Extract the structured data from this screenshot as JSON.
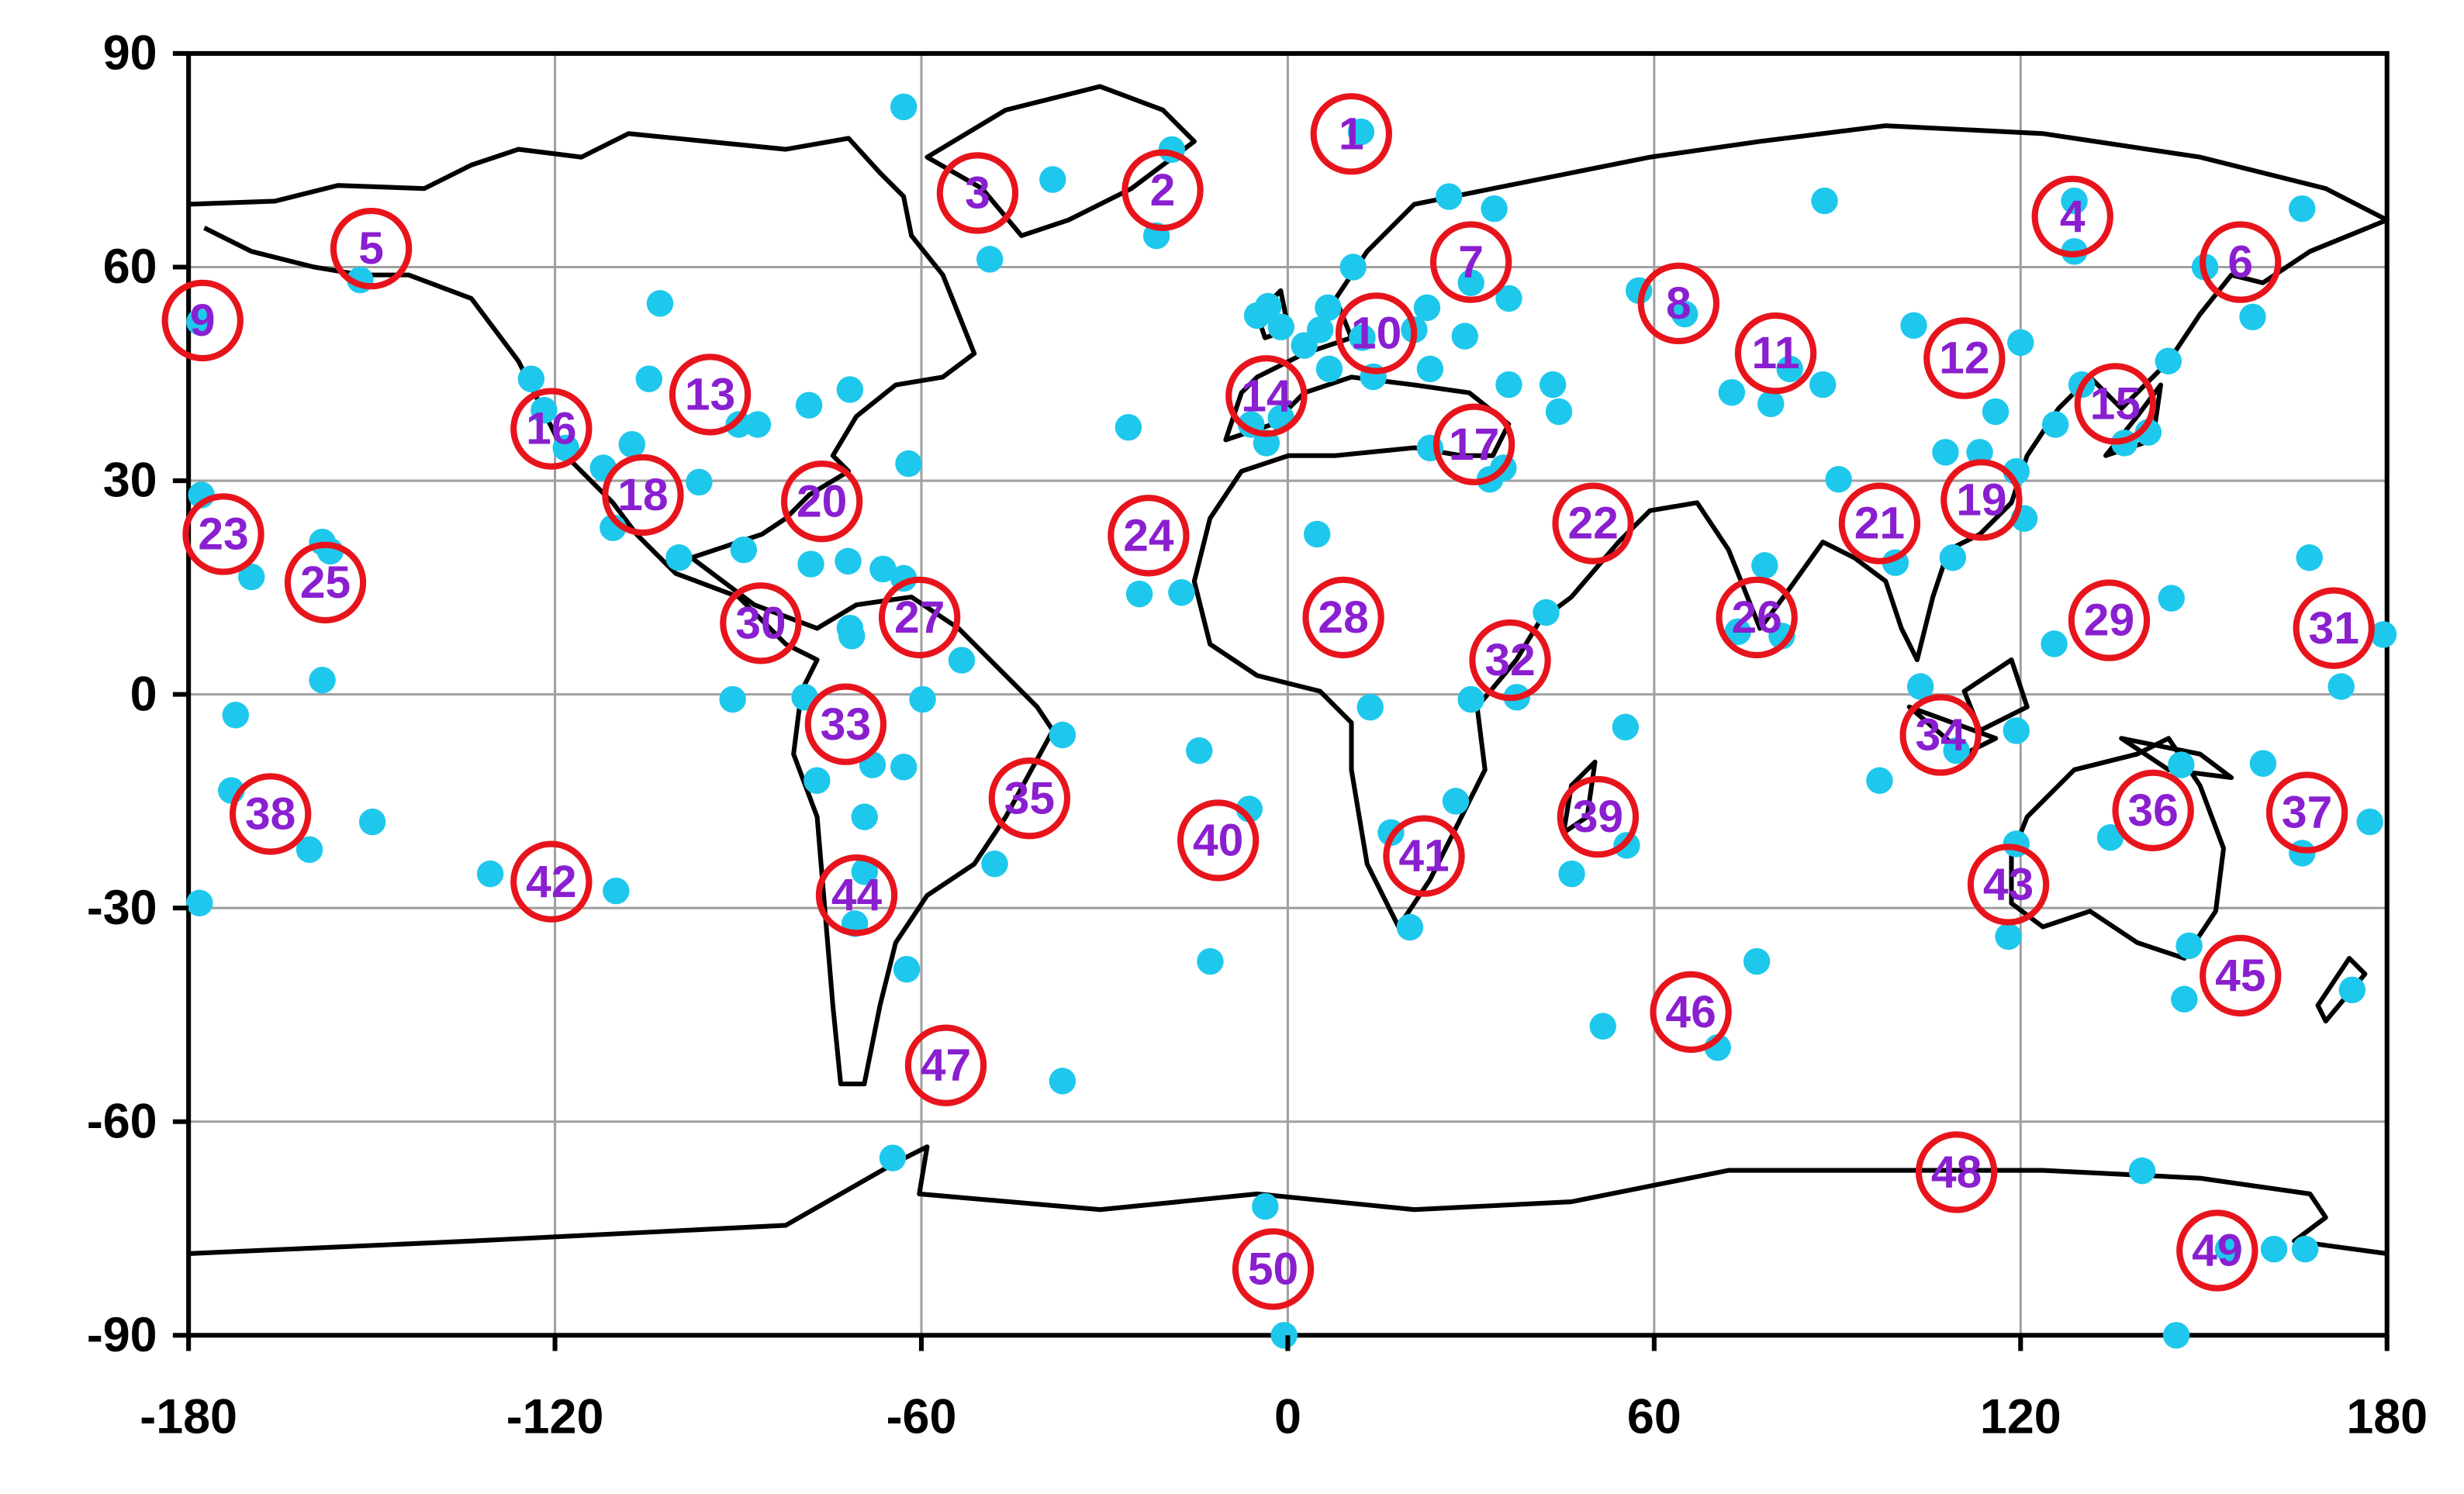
{
  "chart_data": {
    "type": "scatter",
    "xlim": [
      -180,
      180
    ],
    "ylim": [
      -90,
      90
    ],
    "xticks": [
      -180,
      -120,
      -60,
      0,
      60,
      120,
      180
    ],
    "yticks": [
      -90,
      -60,
      -30,
      0,
      30,
      60,
      90
    ],
    "grid": true,
    "series": [
      {
        "color": "#1ec8ec",
        "x": [
          -62.9,
          12,
          -19,
          -38.5,
          -48.8,
          -21.5,
          26.4,
          33.8,
          87.9,
          128.8,
          166.1,
          128.8,
          150.2,
          158,
          10.7,
          30,
          36.2,
          -5,
          -3.2,
          -1.1,
          6.6,
          5.3,
          2.7,
          12.2,
          20.7,
          29,
          22.8,
          6.8,
          14,
          23.3,
          36.2,
          43.4,
          44.4,
          -6,
          -1.1,
          -3.5,
          23.3,
          33.1,
          35.3,
          57.5,
          65,
          72.7,
          79.1,
          87.6,
          82.2,
          102.5,
          120,
          115.9,
          119.3,
          113.3,
          107.7,
          125.7,
          130,
          144.2,
          137,
          140.9,
          90.2,
          78.1,
          80.9,
          73.7,
          99.5,
          108.9,
          120.6,
          103.6,
          96.9,
          109.5,
          119.3,
          125.5,
          144.7,
          167.3,
          179.4,
          172.5,
          159.7,
          146.3,
          134.7,
          166.1,
          177.2,
          119.3,
          118,
          147.6,
          146.8,
          174.3,
          76.8,
          70.4,
          51.6,
          55.3,
          55.5,
          46.5,
          42.3,
          37.5,
          30,
          27.5,
          16.9,
          20,
          13.5,
          4.8,
          -14.5,
          -6.3,
          -12.7,
          -26.1,
          -24.3,
          -17.4,
          -36.9,
          -36.9,
          -48,
          -53.4,
          -59.8,
          -62.9,
          -68,
          -77.1,
          -79.1,
          -90.9,
          -69.3,
          -69.3,
          -62.4,
          -70.9,
          -64.7,
          -3.7,
          -0.6,
          139.9,
          145.5,
          161.5,
          166.6,
          154,
          -62.1,
          -71.7,
          -78.4,
          -89.9,
          -86.8,
          -96.4,
          -104.6,
          -102.8,
          -123.9,
          -121.8,
          -118.2,
          -112.1,
          -107.4,
          -110.5,
          -99.7,
          -89.1,
          -78.1,
          -72,
          -66.3,
          -62.9,
          -71.7,
          -71.4,
          -151.9,
          -178.2,
          -177.9,
          -169.7,
          -172.3,
          -173,
          -158.1,
          -156.8,
          -158.1,
          -160.2,
          -149.9,
          -130.6,
          -110,
          -178.2
        ],
        "y": [
          82.5,
          79,
          76.5,
          72.3,
          61.1,
          64.4,
          69.9,
          68.2,
          69.3,
          69.3,
          68.2,
          62.2,
          60,
          53,
          60,
          57.8,
          55.6,
          53.2,
          54.5,
          51.6,
          54.3,
          51.2,
          49,
          50.1,
          51.2,
          50.3,
          54.3,
          45.7,
          44.6,
          45.7,
          43.5,
          43.5,
          39.7,
          37.9,
          38.8,
          35.3,
          34.6,
          30.2,
          31.8,
          56.7,
          53.4,
          42.4,
          40.8,
          43.5,
          45.7,
          51.8,
          49.4,
          39.7,
          31.3,
          34,
          34,
          37.9,
          43.5,
          46.8,
          35.3,
          36.8,
          30.2,
          18.1,
          8.2,
          8.8,
          18.5,
          19.2,
          24.7,
          1.1,
          -12.1,
          -7.9,
          -5.1,
          7.1,
          13.5,
          19.2,
          8.4,
          1.1,
          -9.7,
          -9.9,
          -20.1,
          -22.3,
          -17.9,
          -21,
          -34,
          -35.3,
          -42.8,
          -41.5,
          -37.5,
          -49.6,
          -46.6,
          -4.6,
          -21.2,
          -25.2,
          11.5,
          -0.4,
          -0.7,
          -15,
          -19.4,
          -32.7,
          -1.8,
          22.5,
          -7.9,
          -16.1,
          -37.5,
          37.5,
          14.1,
          14.3,
          -5.7,
          -54.3,
          -23.8,
          4.8,
          -0.7,
          -10.2,
          -9.9,
          -12.1,
          -0.4,
          -0.7,
          -17.2,
          -24.9,
          -38.6,
          -32.2,
          -65.1,
          -71.9,
          -90,
          -66.9,
          -90,
          -77.9,
          -77.9,
          -77.9,
          32.4,
          42.8,
          40.6,
          37.9,
          37.9,
          29.8,
          44.3,
          54.9,
          44.3,
          39.9,
          34.6,
          31.8,
          35.1,
          23.4,
          19.2,
          20.3,
          18.3,
          18.7,
          17.6,
          16.3,
          9.3,
          8.2,
          58.2,
          52.3,
          28,
          16.5,
          -2.9,
          -13.5,
          21.4,
          20.1,
          2,
          -21.8,
          -17.9,
          -25.2,
          -27.6,
          -29.3
        ]
      },
      {
        "color": "#e8141c",
        "label_color": "#8a1fd0",
        "labels": [
          "1",
          "2",
          "3",
          "4",
          "5",
          "6",
          "7",
          "8",
          "9",
          "10",
          "11",
          "12",
          "13",
          "14",
          "15",
          "16",
          "17",
          "18",
          "19",
          "20",
          "21",
          "22",
          "23",
          "24",
          "25",
          "26",
          "27",
          "28",
          "29",
          "30",
          "31",
          "32",
          "33",
          "34",
          "35",
          "36",
          "37",
          "38",
          "39",
          "40",
          "41",
          "42",
          "43",
          "44",
          "45",
          "46",
          "47",
          "48",
          "49",
          "50"
        ],
        "x": [
          10.4,
          -20.5,
          -50.8,
          128.5,
          -150.1,
          156,
          30,
          64,
          -177.7,
          14.5,
          79.9,
          110.8,
          -94.6,
          -3.5,
          135.5,
          -120.6,
          30.5,
          -105.6,
          113.6,
          -76.3,
          96.9,
          50,
          -174.3,
          -22.8,
          -157.6,
          76.8,
          -60.3,
          9.1,
          134.5,
          -86.3,
          171.3,
          36.4,
          -72.4,
          106.9,
          -42.3,
          141.7,
          166.9,
          -166.6,
          50.8,
          -11.4,
          22.3,
          -120.6,
          118,
          -70.6,
          156,
          66,
          -56,
          109.5,
          152.2,
          -2.4
        ],
        "y": [
          78.7,
          70.8,
          70.4,
          67.1,
          62.6,
          60.7,
          60.7,
          54.9,
          52.5,
          50.7,
          47.9,
          47.2,
          42.1,
          41.9,
          40.8,
          37.3,
          35.1,
          28,
          27.3,
          27.1,
          24,
          24,
          22.5,
          22.3,
          15.7,
          10.8,
          10.8,
          10.8,
          10.4,
          10,
          9.3,
          4.8,
          -4.2,
          -5.7,
          -14.6,
          -16.3,
          -16.6,
          -16.8,
          -17.2,
          -20.5,
          -22.7,
          -26.3,
          -26.7,
          -28.2,
          -39.5,
          -44.6,
          -52.1,
          -67.1,
          -78.1,
          -80.7
        ]
      }
    ]
  }
}
